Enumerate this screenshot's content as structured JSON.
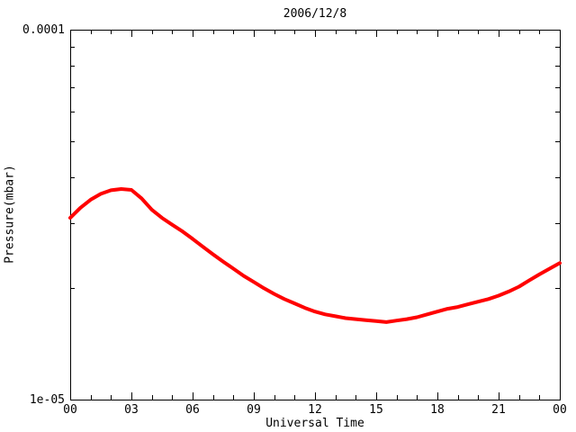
{
  "colors": {
    "background": "#ffffff",
    "foreground": "#000000",
    "curve": "#ff0000"
  },
  "chart_data": {
    "type": "line",
    "title": "2006/12/8",
    "xlabel": "Universal Time",
    "ylabel": "Pressure(mbar)",
    "grid": false,
    "legend": "none",
    "x_axis": {
      "min": 0,
      "max": 24,
      "minor_tick_interval": 1,
      "major_ticks": [
        0,
        3,
        6,
        9,
        12,
        15,
        18,
        21,
        24
      ],
      "major_tick_labels": [
        "00",
        "03",
        "06",
        "09",
        "12",
        "15",
        "18",
        "21",
        "00"
      ]
    },
    "y_axis": {
      "scale": "log",
      "min": 1e-05,
      "max": 0.0001,
      "minor_ticks": [
        2e-05,
        3e-05,
        4e-05,
        5e-05,
        6e-05,
        7e-05,
        8e-05,
        9e-05
      ],
      "labels": [
        {
          "value": 0.0001,
          "text": "0.0001"
        },
        {
          "value": 1e-05,
          "text": "1e-05"
        }
      ]
    },
    "series": [
      {
        "name": "pressure",
        "color": "#ff0000",
        "points": [
          [
            0,
            3.1e-05
          ],
          [
            0.5,
            3.3e-05
          ],
          [
            1,
            3.47e-05
          ],
          [
            1.5,
            3.6e-05
          ],
          [
            2,
            3.68e-05
          ],
          [
            2.5,
            3.71e-05
          ],
          [
            3,
            3.69e-05
          ],
          [
            3.5,
            3.5e-05
          ],
          [
            4,
            3.26e-05
          ],
          [
            4.5,
            3.1e-05
          ],
          [
            5,
            2.97e-05
          ],
          [
            5.5,
            2.85e-05
          ],
          [
            6,
            2.72e-05
          ],
          [
            6.5,
            2.59e-05
          ],
          [
            7,
            2.47e-05
          ],
          [
            7.5,
            2.36e-05
          ],
          [
            8,
            2.26e-05
          ],
          [
            8.5,
            2.16e-05
          ],
          [
            9,
            2.08e-05
          ],
          [
            9.5,
            2e-05
          ],
          [
            10,
            1.93e-05
          ],
          [
            10.5,
            1.87e-05
          ],
          [
            11,
            1.82e-05
          ],
          [
            11.5,
            1.77e-05
          ],
          [
            12,
            1.73e-05
          ],
          [
            12.5,
            1.7e-05
          ],
          [
            13,
            1.68e-05
          ],
          [
            13.5,
            1.66e-05
          ],
          [
            14,
            1.65e-05
          ],
          [
            14.5,
            1.64e-05
          ],
          [
            15,
            1.63e-05
          ],
          [
            15.5,
            1.62e-05
          ],
          [
            16,
            1.635e-05
          ],
          [
            16.5,
            1.65e-05
          ],
          [
            17,
            1.67e-05
          ],
          [
            17.5,
            1.7e-05
          ],
          [
            18,
            1.73e-05
          ],
          [
            18.5,
            1.76e-05
          ],
          [
            19,
            1.78e-05
          ],
          [
            19.5,
            1.81e-05
          ],
          [
            20,
            1.84e-05
          ],
          [
            20.5,
            1.87e-05
          ],
          [
            21,
            1.91e-05
          ],
          [
            21.5,
            1.96e-05
          ],
          [
            22,
            2.02e-05
          ],
          [
            22.5,
            2.1e-05
          ],
          [
            23,
            2.18e-05
          ],
          [
            23.5,
            2.26e-05
          ],
          [
            24,
            2.34e-05
          ]
        ]
      }
    ]
  }
}
